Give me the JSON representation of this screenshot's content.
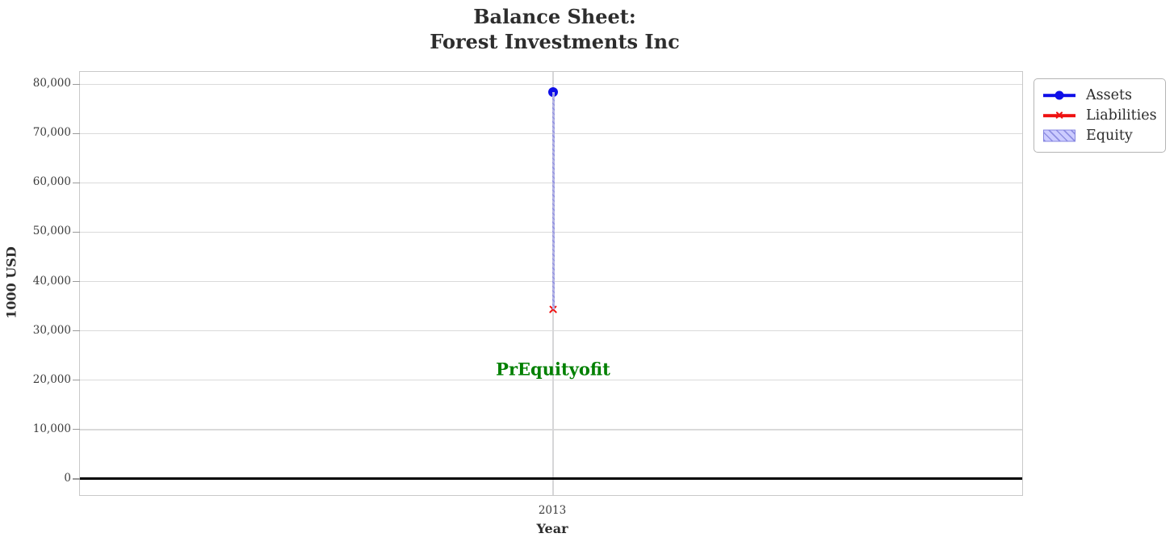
{
  "chart_data": {
    "type": "line",
    "title_lines": [
      "Balance Sheet:",
      "Forest Investments Inc"
    ],
    "xlabel": "Year",
    "ylabel": "1000 USD",
    "x_categories": [
      "2013"
    ],
    "series": [
      {
        "name": "Assets",
        "type": "scatter",
        "marker": "circle",
        "color": "#0f0fe8",
        "values": [
          78400
        ]
      },
      {
        "name": "Liabilities",
        "type": "scatter",
        "marker": "x",
        "color": "#ee1111",
        "values": [
          34400
        ]
      },
      {
        "name": "Equity",
        "type": "bar",
        "color": "#ccccff",
        "hatch": "///",
        "hatch_color": "#8f8fe2",
        "values": [
          44000
        ],
        "bar_bottom": [
          34400
        ],
        "bar_top": [
          78400
        ]
      }
    ],
    "annotation": {
      "text": "PrEquityofit",
      "color": "#008000",
      "x": "2013",
      "y": 22300
    },
    "yticks": [
      {
        "value": 0,
        "label": "0"
      },
      {
        "value": 10000,
        "label": "10,000"
      },
      {
        "value": 20000,
        "label": "20,000"
      },
      {
        "value": 30000,
        "label": "30,000"
      },
      {
        "value": 40000,
        "label": "40,000"
      },
      {
        "value": 50000,
        "label": "50,000"
      },
      {
        "value": 60000,
        "label": "60,000"
      },
      {
        "value": 70000,
        "label": "70,000"
      },
      {
        "value": 80000,
        "label": "80,000"
      }
    ],
    "ylim": [
      -3300,
      82500
    ],
    "zero_line": {
      "value": 0,
      "color": "#000000"
    },
    "grid": true,
    "legend": {
      "position": "outside-top-right",
      "entries": [
        "Assets",
        "Liabilities",
        "Equity"
      ]
    }
  }
}
